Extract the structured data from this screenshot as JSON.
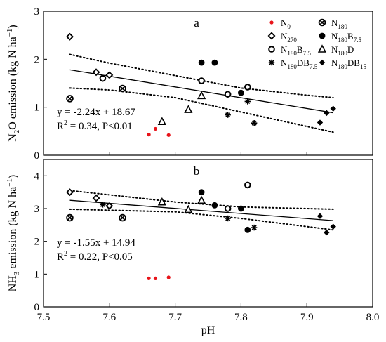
{
  "chart_data": [
    {
      "type": "scatter",
      "panel_label": "a",
      "xlabel": "",
      "ylabel": {
        "pre": "N",
        "sub": "2",
        "mid": "O emission (kg N ha",
        "sup": "−1",
        "post": ")"
      },
      "xlim": [
        7.5,
        8.0
      ],
      "ylim": [
        0,
        3
      ],
      "y_ticks": [
        "0",
        "1",
        "2",
        "3"
      ],
      "equation": "y = -2.24x + 18.67",
      "stats": {
        "r2_pre": "R",
        "r2_sup": "2",
        "r2_post": " = 0.34, P<0.01"
      },
      "fit": {
        "slope": -2.24,
        "intercept": 18.67,
        "x_range": [
          7.54,
          7.94
        ]
      },
      "conf_band": {
        "upper": [
          [
            7.54,
            2.1
          ],
          [
            7.6,
            1.92
          ],
          [
            7.7,
            1.66
          ],
          [
            7.8,
            1.4
          ],
          [
            7.9,
            1.25
          ],
          [
            7.94,
            1.2
          ]
        ],
        "lower": [
          [
            7.54,
            1.4
          ],
          [
            7.6,
            1.36
          ],
          [
            7.7,
            1.2
          ],
          [
            7.8,
            0.9
          ],
          [
            7.9,
            0.6
          ],
          [
            7.94,
            0.48
          ]
        ]
      },
      "series": [
        {
          "name": "N0",
          "marker": "dot-red",
          "points": [
            [
              7.66,
              0.43
            ],
            [
              7.67,
              0.55
            ],
            [
              7.69,
              0.42
            ]
          ]
        },
        {
          "name": "N270",
          "marker": "diamond-open",
          "points": [
            [
              7.54,
              2.47
            ],
            [
              7.58,
              1.73
            ],
            [
              7.6,
              1.67
            ]
          ]
        },
        {
          "name": "N180B7.5",
          "marker": "circle-open",
          "points": [
            [
              7.59,
              1.6
            ],
            [
              7.74,
              1.55
            ],
            [
              7.78,
              1.27
            ],
            [
              7.81,
              1.42
            ]
          ]
        },
        {
          "name": "N180DB7.5",
          "marker": "asterisk",
          "points": [
            [
              7.78,
              0.84
            ],
            [
              7.81,
              1.12
            ],
            [
              7.82,
              0.67
            ]
          ]
        },
        {
          "name": "N180",
          "marker": "circle-x",
          "points": [
            [
              7.54,
              1.18
            ],
            [
              7.62,
              1.39
            ]
          ]
        },
        {
          "name": "N180B7.5",
          "marker": "dot-black",
          "points": [
            [
              7.74,
              1.93
            ],
            [
              7.76,
              1.93
            ],
            [
              7.8,
              1.3
            ]
          ]
        },
        {
          "name": "N180D",
          "marker": "triangle-open",
          "points": [
            [
              7.68,
              0.7
            ],
            [
              7.72,
              0.95
            ],
            [
              7.74,
              1.24
            ]
          ]
        },
        {
          "name": "N180DB15",
          "marker": "diamond-filled",
          "points": [
            [
              7.92,
              0.68
            ],
            [
              7.93,
              0.88
            ],
            [
              7.94,
              0.97
            ]
          ]
        }
      ]
    },
    {
      "type": "scatter",
      "panel_label": "b",
      "xlabel": "pH",
      "ylabel": {
        "pre": "NH",
        "sub": "3",
        "mid": " emission (kg N ha",
        "sup": "−1",
        "post": ")"
      },
      "xlim": [
        7.5,
        8.0
      ],
      "ylim": [
        0,
        4.5
      ],
      "x_ticks": [
        "7.5",
        "7.6",
        "7.7",
        "7.8",
        "7.9",
        "8.0"
      ],
      "y_ticks": [
        "0",
        "1",
        "2",
        "3",
        "4"
      ],
      "equation": "y = -1.55x + 14.94",
      "stats": {
        "r2_pre": "R",
        "r2_sup": "2",
        "r2_post": " = 0.22, P<0.05"
      },
      "fit": {
        "slope": -1.55,
        "intercept": 14.94,
        "x_range": [
          7.54,
          7.94
        ]
      },
      "conf_band": {
        "upper": [
          [
            7.54,
            3.55
          ],
          [
            7.6,
            3.42
          ],
          [
            7.7,
            3.2
          ],
          [
            7.8,
            3.05
          ],
          [
            7.9,
            3.0
          ],
          [
            7.94,
            2.98
          ]
        ],
        "lower": [
          [
            7.54,
            2.98
          ],
          [
            7.6,
            2.95
          ],
          [
            7.7,
            2.9
          ],
          [
            7.8,
            2.7
          ],
          [
            7.9,
            2.45
          ],
          [
            7.94,
            2.35
          ]
        ]
      },
      "series": [
        {
          "name": "N0",
          "marker": "dot-red",
          "points": [
            [
              7.66,
              0.87
            ],
            [
              7.67,
              0.87
            ],
            [
              7.69,
              0.9
            ]
          ]
        },
        {
          "name": "N270",
          "marker": "diamond-open",
          "points": [
            [
              7.54,
              3.5
            ],
            [
              7.58,
              3.32
            ],
            [
              7.6,
              3.08
            ]
          ]
        },
        {
          "name": "N180B7.5",
          "marker": "circle-open",
          "points": [
            [
              7.78,
              3.0
            ],
            [
              7.81,
              3.72
            ]
          ]
        },
        {
          "name": "N180DB7.5",
          "marker": "asterisk",
          "points": [
            [
              7.59,
              3.12
            ],
            [
              7.78,
              2.7
            ],
            [
              7.82,
              2.42
            ]
          ]
        },
        {
          "name": "N180",
          "marker": "circle-x",
          "points": [
            [
              7.54,
              2.72
            ],
            [
              7.62,
              2.72
            ]
          ]
        },
        {
          "name": "N180B7.5",
          "marker": "dot-black",
          "points": [
            [
              7.74,
              3.5
            ],
            [
              7.76,
              3.1
            ],
            [
              7.8,
              3.0
            ],
            [
              7.81,
              2.35
            ]
          ]
        },
        {
          "name": "N180D",
          "marker": "triangle-open",
          "points": [
            [
              7.68,
              3.2
            ],
            [
              7.72,
              2.97
            ],
            [
              7.74,
              3.25
            ]
          ]
        },
        {
          "name": "N180DB15",
          "marker": "diamond-filled",
          "points": [
            [
              7.92,
              2.77
            ],
            [
              7.93,
              2.27
            ],
            [
              7.94,
              2.45
            ]
          ]
        }
      ]
    }
  ],
  "legend": {
    "items": [
      {
        "marker": "dot-red",
        "base": "N",
        "sub": "0",
        "after": "",
        "sub2": ""
      },
      {
        "marker": "circle-x",
        "base": "N",
        "sub": "180",
        "after": "",
        "sub2": ""
      },
      {
        "marker": "diamond-open",
        "base": "N",
        "sub": "270",
        "after": "",
        "sub2": ""
      },
      {
        "marker": "dot-black",
        "base": "N",
        "sub": "180",
        "after": "B",
        "sub2": "7.5"
      },
      {
        "marker": "circle-open",
        "base": "N",
        "sub": "180",
        "after": "B",
        "sub2": "7.5"
      },
      {
        "marker": "triangle-open",
        "base": "N",
        "sub": "180",
        "after": "D",
        "sub2": ""
      },
      {
        "marker": "asterisk",
        "base": "N",
        "sub": "180",
        "after": "DB",
        "sub2": "7.5"
      },
      {
        "marker": "diamond-filled",
        "base": "N",
        "sub": "180",
        "after": "DB",
        "sub2": "15"
      }
    ]
  },
  "colors": {
    "n0": "#e8141a",
    "ink": "#000000"
  }
}
